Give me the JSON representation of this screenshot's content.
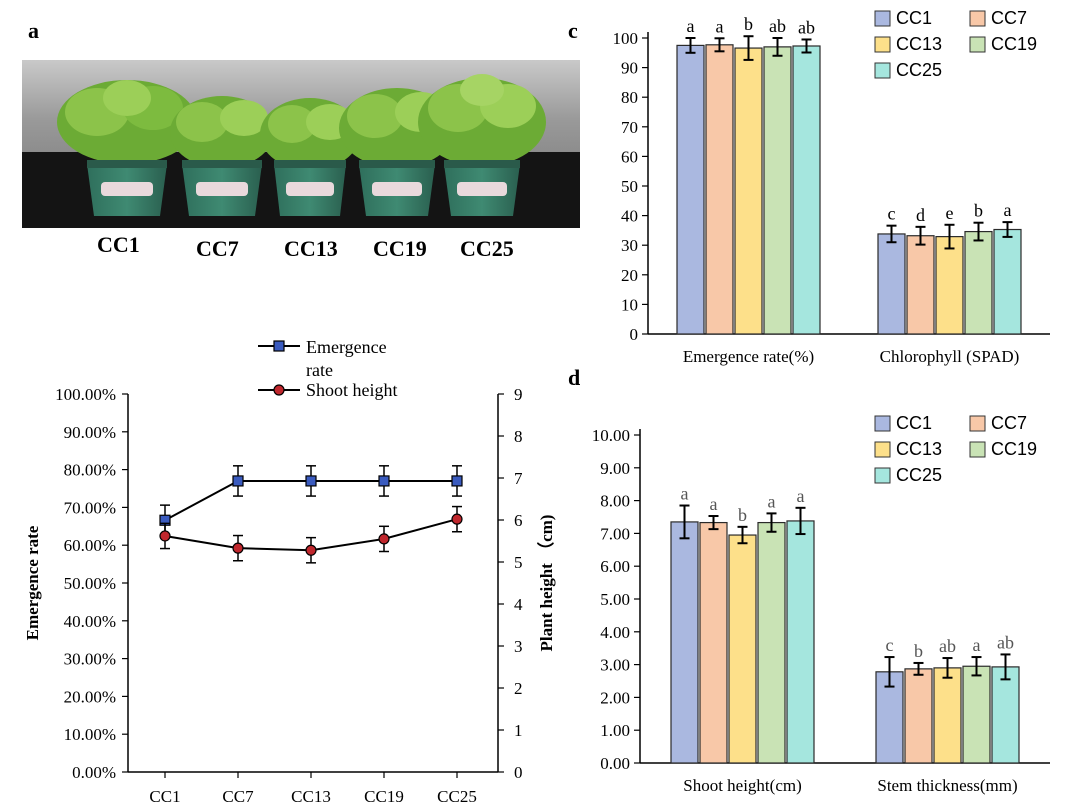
{
  "panels": {
    "a": "a",
    "b": "",
    "c": "c",
    "d": "d"
  },
  "photo": {
    "labels": [
      "CC1",
      "CC7",
      "CC13",
      "CC19",
      "CC25"
    ]
  },
  "chart_data": [
    {
      "type": "line",
      "categories": [
        "CC1",
        "CC7",
        "CC13",
        "CC19",
        "CC25"
      ],
      "series": [
        {
          "name": "Emergence rate",
          "axis": "left",
          "values": [
            0.666,
            0.77,
            0.77,
            0.77,
            0.77
          ],
          "errors": [
            0.04,
            0.04,
            0.04,
            0.04,
            0.04
          ],
          "marker": "square",
          "color": "#3a5bbf"
        },
        {
          "name": "Shoot height",
          "axis": "right",
          "values": [
            5.62,
            5.33,
            5.28,
            5.55,
            6.02
          ],
          "errors": [
            0.3,
            0.3,
            0.3,
            0.3,
            0.3
          ],
          "marker": "circle",
          "color": "#c0272d"
        }
      ],
      "left_ticks": [
        "0.00%",
        "10.00%",
        "20.00%",
        "30.00%",
        "40.00%",
        "50.00%",
        "60.00%",
        "70.00%",
        "80.00%",
        "90.00%",
        "100.00%"
      ],
      "right_ticks": [
        "0",
        "1",
        "2",
        "3",
        "4",
        "5",
        "6",
        "7",
        "8",
        "9"
      ],
      "ylim_left": [
        0,
        1
      ],
      "ylim_right": [
        0,
        9
      ],
      "ylabel_left": "Emergence rate",
      "ylabel_right": "Plant height （cm)",
      "legend": {
        "emergence": [
          "Emergence",
          "rate"
        ],
        "shoot": "Shoot height"
      }
    },
    {
      "type": "bar",
      "categories": [
        "Emergence rate(%)",
        "Chlorophyll (SPAD)"
      ],
      "series": [
        {
          "name": "CC1",
          "color": "#aab8e0",
          "values": [
            97.5,
            33.8
          ],
          "errors": [
            2.5,
            2.8
          ],
          "letters": [
            "a",
            "c"
          ]
        },
        {
          "name": "CC7",
          "color": "#f8c8a8",
          "values": [
            97.7,
            33.2
          ],
          "errors": [
            2.2,
            3.0
          ],
          "letters": [
            "a",
            "d"
          ]
        },
        {
          "name": "CC13",
          "color": "#fde08a",
          "values": [
            96.6,
            32.9
          ],
          "errors": [
            4.0,
            4.0
          ],
          "letters": [
            "b",
            "e"
          ]
        },
        {
          "name": "CC19",
          "color": "#c9e3b5",
          "values": [
            97.0,
            34.6
          ],
          "errors": [
            3.0,
            3.0
          ],
          "letters": [
            "ab",
            "b"
          ]
        },
        {
          "name": "CC25",
          "color": "#a5e6de",
          "values": [
            97.3,
            35.3
          ],
          "errors": [
            2.2,
            2.5
          ],
          "letters": [
            "ab",
            "a"
          ]
        }
      ],
      "ylim": [
        0,
        100
      ],
      "yticks": [
        "0",
        "10",
        "20",
        "30",
        "40",
        "50",
        "60",
        "70",
        "80",
        "90",
        "100"
      ],
      "legend": [
        "CC1",
        "CC7",
        "CC13",
        "CC19",
        "CC25"
      ]
    },
    {
      "type": "bar",
      "categories": [
        "Shoot height(cm)",
        "Stem thickness(mm)"
      ],
      "series": [
        {
          "name": "CC1",
          "color": "#aab8e0",
          "values": [
            7.35,
            2.78
          ],
          "errors": [
            0.5,
            0.45
          ],
          "letters": [
            "a",
            "c"
          ]
        },
        {
          "name": "CC7",
          "color": "#f8c8a8",
          "values": [
            7.33,
            2.87
          ],
          "errors": [
            0.2,
            0.18
          ],
          "letters": [
            "a",
            "b"
          ]
        },
        {
          "name": "CC13",
          "color": "#fde08a",
          "values": [
            6.95,
            2.9
          ],
          "errors": [
            0.25,
            0.3
          ],
          "letters": [
            "b",
            "ab"
          ]
        },
        {
          "name": "CC19",
          "color": "#c9e3b5",
          "values": [
            7.33,
            2.95
          ],
          "errors": [
            0.28,
            0.28
          ],
          "letters": [
            "a",
            "a"
          ]
        },
        {
          "name": "CC25",
          "color": "#a5e6de",
          "values": [
            7.38,
            2.93
          ],
          "errors": [
            0.4,
            0.38
          ],
          "letters": [
            "a",
            "ab"
          ]
        }
      ],
      "ylim": [
        0,
        10
      ],
      "yticks": [
        "0.00",
        "1.00",
        "2.00",
        "3.00",
        "4.00",
        "5.00",
        "6.00",
        "7.00",
        "8.00",
        "9.00",
        "10.00"
      ],
      "legend": [
        "CC1",
        "CC7",
        "CC13",
        "CC19",
        "CC25"
      ]
    }
  ]
}
